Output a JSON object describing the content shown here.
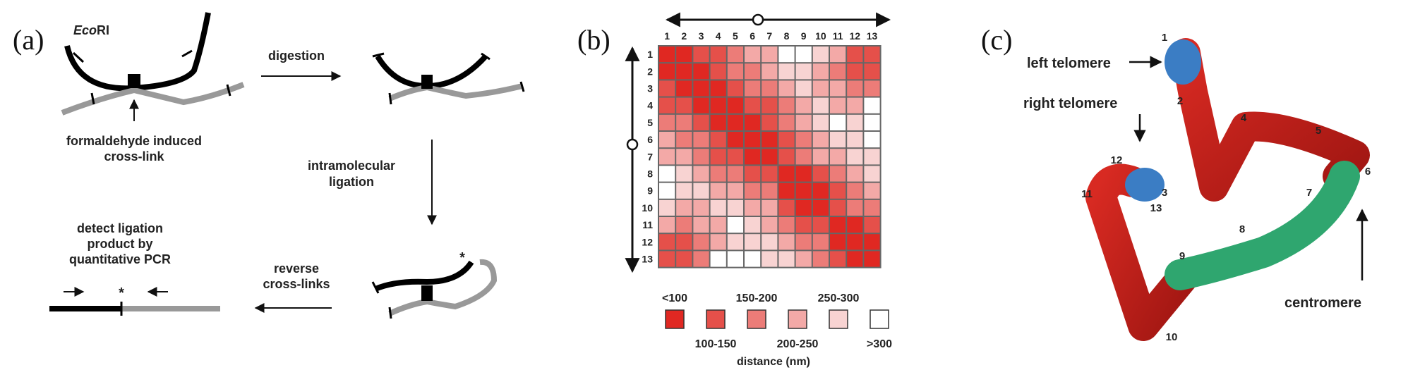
{
  "panel_a": {
    "label": "(a)",
    "enzyme_prefix": "Eco",
    "enzyme_suffix": "RI",
    "digestion": "digestion",
    "crosslink_line1": "formaldehyde induced",
    "crosslink_line2": "cross-link",
    "ligation_line1": "intramolecular",
    "ligation_line2": "ligation",
    "reverse_line1": "reverse",
    "reverse_line2": "cross-links",
    "detect_line1": "detect ligation",
    "detect_line2": "product by",
    "detect_line3": "quantitative PCR",
    "asterisk": "*"
  },
  "panel_b": {
    "label": "(b)",
    "xlabel": "distance (nm)",
    "legend": [
      "<100",
      "100-150",
      "150-200",
      "200-250",
      "250-300",
      ">300"
    ],
    "legend_colors": [
      "#e02822",
      "#e5504a",
      "#ec7c78",
      "#f3a9a7",
      "#f8d3d2",
      "#ffffff"
    ]
  },
  "chart_data": {
    "type": "heatmap",
    "categories": [
      "1",
      "2",
      "3",
      "4",
      "5",
      "6",
      "7",
      "8",
      "9",
      "10",
      "11",
      "12",
      "13"
    ],
    "x": [
      "1",
      "2",
      "3",
      "4",
      "5",
      "6",
      "7",
      "8",
      "9",
      "10",
      "11",
      "12",
      "13"
    ],
    "y": [
      "1",
      "2",
      "3",
      "4",
      "5",
      "6",
      "7",
      "8",
      "9",
      "10",
      "11",
      "12",
      "13"
    ],
    "bins": [
      "<100",
      "100-150",
      "150-200",
      "200-250",
      "250-300",
      ">300"
    ],
    "values": [
      [
        0,
        0,
        1,
        1,
        2,
        3,
        3,
        5,
        5,
        4,
        3,
        1,
        1
      ],
      [
        0,
        0,
        0,
        1,
        2,
        2,
        3,
        4,
        4,
        3,
        2,
        1,
        1
      ],
      [
        1,
        0,
        0,
        0,
        1,
        2,
        2,
        3,
        4,
        3,
        3,
        2,
        2
      ],
      [
        1,
        1,
        0,
        0,
        0,
        1,
        1,
        2,
        3,
        4,
        3,
        3,
        5
      ],
      [
        2,
        2,
        1,
        0,
        0,
        0,
        1,
        2,
        3,
        4,
        5,
        4,
        5
      ],
      [
        3,
        2,
        2,
        1,
        0,
        0,
        0,
        1,
        2,
        3,
        4,
        4,
        5
      ],
      [
        3,
        3,
        2,
        1,
        1,
        0,
        0,
        1,
        2,
        3,
        3,
        4,
        4
      ],
      [
        5,
        4,
        3,
        2,
        2,
        1,
        1,
        0,
        0,
        1,
        2,
        3,
        4
      ],
      [
        5,
        4,
        4,
        3,
        3,
        2,
        2,
        0,
        0,
        0,
        1,
        2,
        3
      ],
      [
        4,
        3,
        3,
        4,
        4,
        3,
        3,
        1,
        0,
        0,
        1,
        2,
        2
      ],
      [
        3,
        2,
        3,
        3,
        5,
        4,
        3,
        2,
        1,
        1,
        0,
        0,
        1
      ],
      [
        1,
        1,
        2,
        3,
        4,
        4,
        4,
        3,
        2,
        2,
        0,
        0,
        0
      ],
      [
        1,
        1,
        2,
        5,
        5,
        5,
        4,
        4,
        3,
        2,
        1,
        0,
        0
      ]
    ]
  },
  "panel_c": {
    "label": "(c)",
    "left_telomere": "left telomere",
    "right_telomere": "right telomere",
    "centromere": "centromere",
    "points": [
      "1",
      "2",
      "3",
      "4",
      "5",
      "6",
      "7",
      "8",
      "9",
      "10",
      "11",
      "12",
      "13"
    ]
  }
}
